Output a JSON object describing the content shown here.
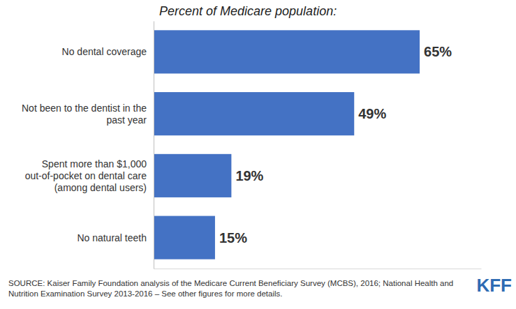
{
  "chart_data": {
    "type": "bar",
    "orientation": "horizontal",
    "title": "Percent of Medicare population:",
    "categories": [
      "No dental coverage",
      "Not been to the dentist in the past year",
      "Spent more than $1,000 out-of-pocket on dental care (among dental users)",
      "No natural teeth"
    ],
    "values": [
      65,
      49,
      19,
      15
    ],
    "value_labels": [
      "65%",
      "49%",
      "19%",
      "15%"
    ],
    "color": "#4472c4",
    "xlim": [
      0,
      80
    ],
    "data_labels": true,
    "tick_labels": "y",
    "grid": false,
    "source": "SOURCE: Kaiser Family Foundation analysis of the Medicare Current Beneficiary Survey (MCBS), 2016; National Health and Nutrition Examination Survey 2013-2016 – See other figures for more details.",
    "logo": "KFF"
  }
}
